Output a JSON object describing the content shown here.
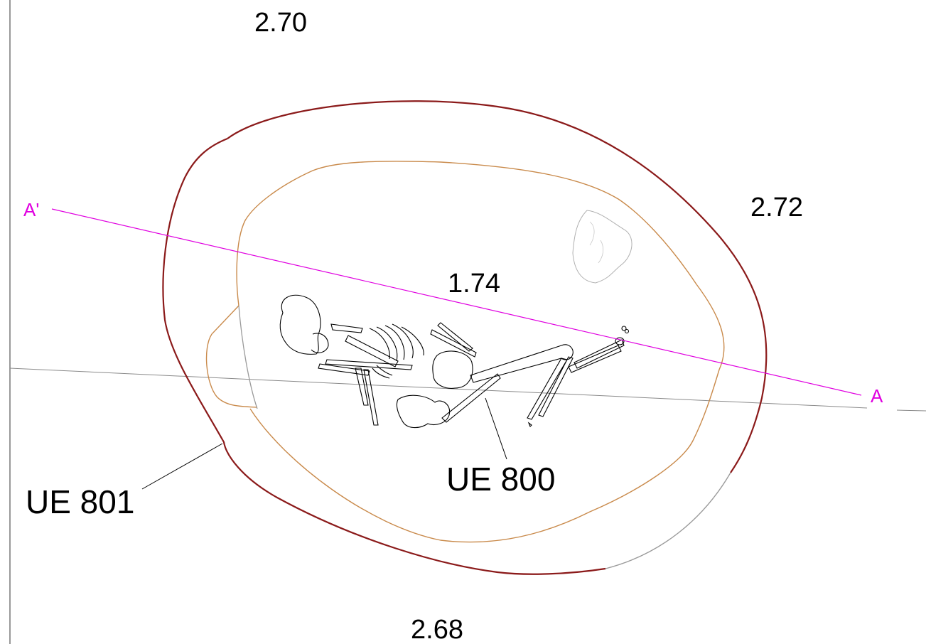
{
  "elevations": {
    "top": "2.70",
    "right": "2.72",
    "center": "1.74",
    "bottom": "2.68"
  },
  "units": {
    "cut": "UE 801",
    "burial": "UE 800"
  },
  "section": {
    "start": "A'",
    "end": "A"
  },
  "colors": {
    "cut_outline": "#8b1a1a",
    "fill_outline": "#c98a4b",
    "section_line": "#e000e0",
    "grid_line": "#8a8a8a",
    "drawing": "#000000"
  }
}
